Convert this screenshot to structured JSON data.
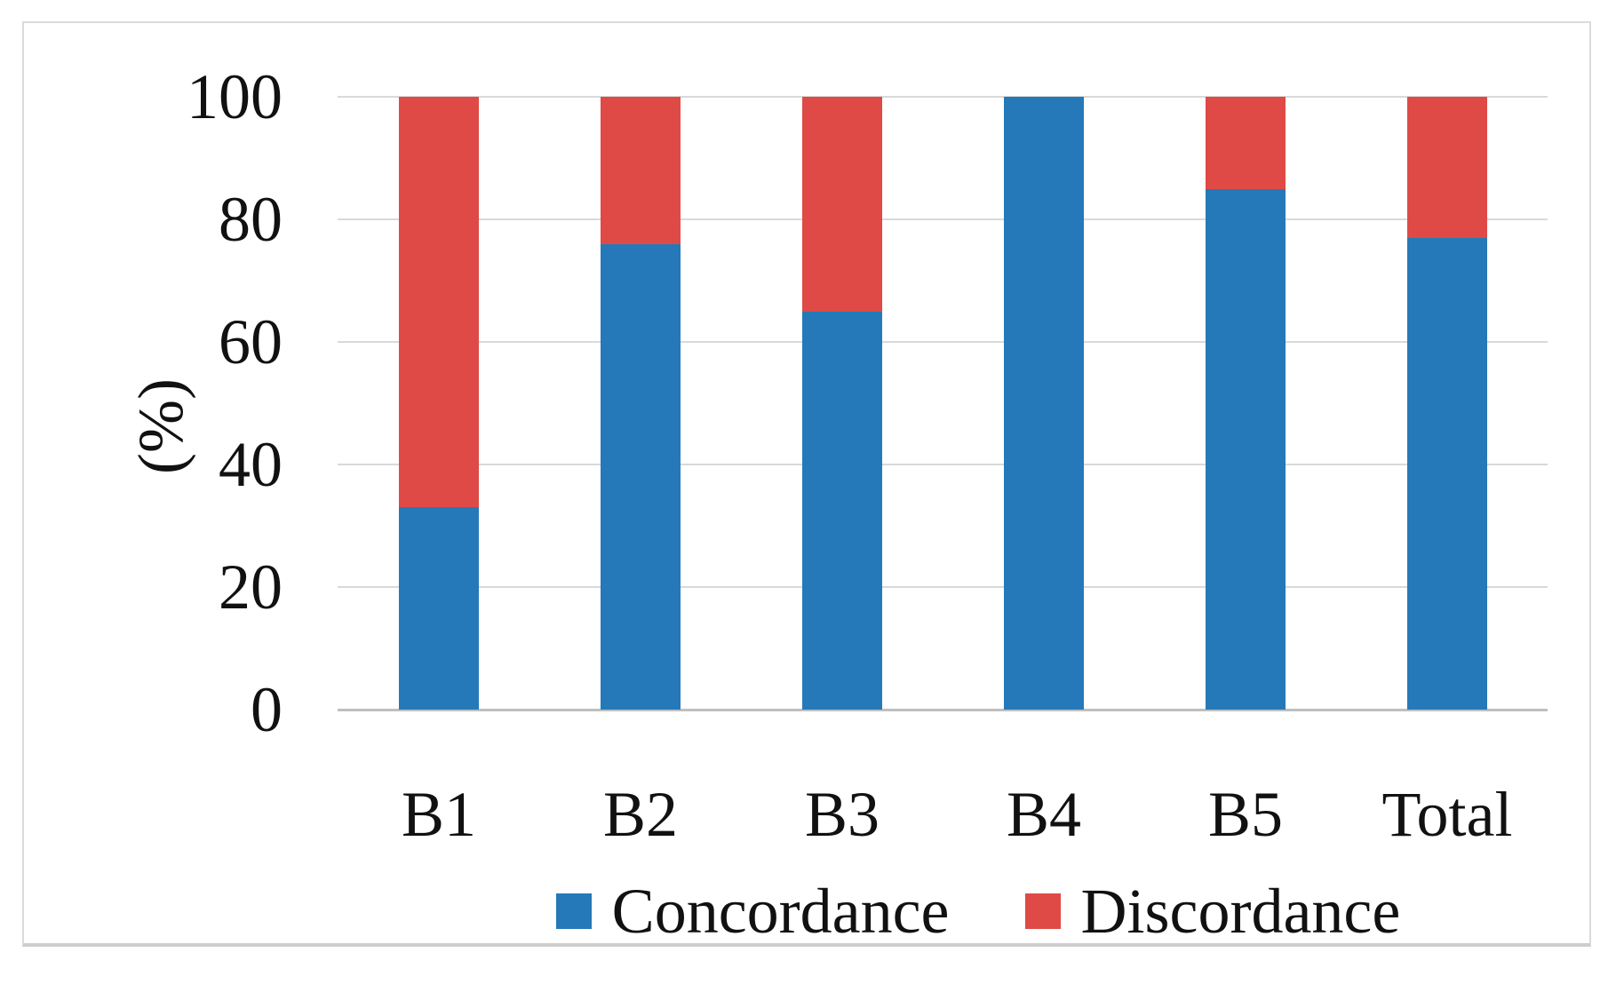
{
  "chart_data": {
    "type": "bar",
    "stacked": true,
    "orientation": "vertical",
    "categories": [
      "B1",
      "B2",
      "B3",
      "B4",
      "B5",
      "Total"
    ],
    "series": [
      {
        "name": "Concordance",
        "color": "#2579b9",
        "values": [
          33,
          76,
          65,
          100,
          85,
          77
        ]
      },
      {
        "name": "Discordance",
        "color": "#e04a46",
        "values": [
          67,
          24,
          35,
          0,
          15,
          23
        ]
      }
    ],
    "title": "",
    "xlabel": "",
    "ylabel": "(%)",
    "ylim": [
      0,
      100
    ],
    "yticks": [
      0,
      20,
      40,
      60,
      80,
      100
    ],
    "grid": true,
    "gridline_color": "#d9d9d9",
    "axis_line_color": "#bfbfbf",
    "legend_position": "bottom"
  }
}
